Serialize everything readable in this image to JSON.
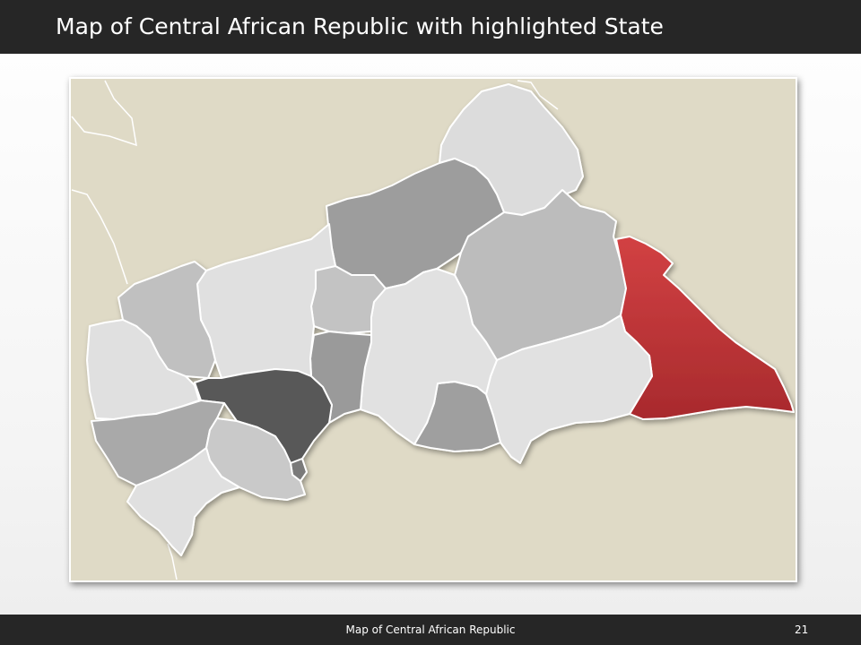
{
  "slide": {
    "title": "Map of Central African Republic with highlighted State",
    "footer_text": "Map of Central African Republic",
    "page_number": "21"
  },
  "map": {
    "country": "Central African Republic",
    "highlight_color": "#c0393a",
    "background_color": "#dfdac6",
    "border_color": "#ffffff",
    "regions": [
      {
        "id": "vakaga",
        "fill": "#dcdcdc",
        "highlighted": false
      },
      {
        "id": "bamingui-bangoran",
        "fill": "#9d9d9d",
        "highlighted": false
      },
      {
        "id": "haute-kotto",
        "fill": "#bcbcbc",
        "highlighted": false
      },
      {
        "id": "haut-mbomou",
        "fill": "#c0393a",
        "highlighted": true
      },
      {
        "id": "mbomou",
        "fill": "#e1e1e1",
        "highlighted": false
      },
      {
        "id": "basse-kotto",
        "fill": "#9f9f9f",
        "highlighted": false
      },
      {
        "id": "ouaka",
        "fill": "#e1e1e1",
        "highlighted": false
      },
      {
        "id": "nana-grebizi",
        "fill": "#c3c3c3",
        "highlighted": false
      },
      {
        "id": "kemo",
        "fill": "#9a9a9a",
        "highlighted": false
      },
      {
        "id": "ouham",
        "fill": "#e0e0e0",
        "highlighted": false
      },
      {
        "id": "ouham-pende",
        "fill": "#c0c0c0",
        "highlighted": false
      },
      {
        "id": "nana-mambere",
        "fill": "#e0e0e0",
        "highlighted": false
      },
      {
        "id": "ombella-mpoko",
        "fill": "#585858",
        "highlighted": false
      },
      {
        "id": "bangui",
        "fill": "#7a7a7a",
        "highlighted": false
      },
      {
        "id": "mambere-kadei",
        "fill": "#a9a9a9",
        "highlighted": false
      },
      {
        "id": "lobaye",
        "fill": "#c9c9c9",
        "highlighted": false
      },
      {
        "id": "sangha-mbaere",
        "fill": "#e0e0e0",
        "highlighted": false
      }
    ]
  }
}
